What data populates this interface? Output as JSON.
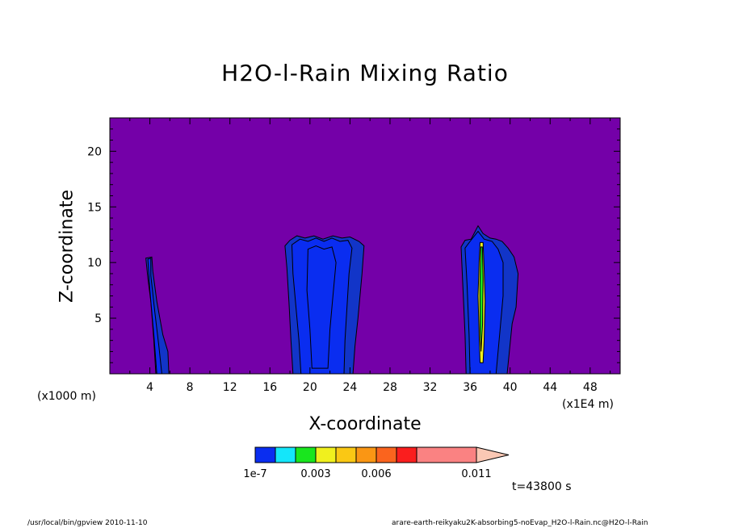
{
  "chart_data": {
    "type": "contour",
    "title": "H2O-l-Rain Mixing Ratio",
    "xlabel": "X-coordinate",
    "ylabel": "Z-coordinate",
    "x_unit_left": "(x1000 m)",
    "x_unit_right": "(x1E4 m)",
    "xlim": [
      0,
      51
    ],
    "ylim": [
      0,
      23
    ],
    "x_ticks": [
      4,
      8,
      12,
      16,
      20,
      24,
      28,
      32,
      36,
      40,
      44,
      48
    ],
    "y_ticks": [
      5,
      10,
      15,
      20
    ],
    "background_color": "#7400A8",
    "colorbar": {
      "colors": [
        "#0A2DF0",
        "#14E6FA",
        "#19E61E",
        "#F0F01E",
        "#FAC814",
        "#FA9614",
        "#FA641E",
        "#FA1E1E",
        "#FA8282"
      ],
      "labels": [
        "1e-7",
        "0.003",
        "0.006",
        "0.011"
      ]
    },
    "features": [
      {
        "name": "cell-left",
        "x_range": [
          3.5,
          5.8
        ],
        "top": 10.5
      },
      {
        "name": "cell-center",
        "x_range": [
          17.5,
          25.5
        ],
        "top": 12.5
      },
      {
        "name": "cell-right",
        "x_range": [
          35.0,
          40.8
        ],
        "top": 13.3
      }
    ],
    "time_label": "t=43800 s"
  },
  "footer": {
    "left": "/usr/local/bin/gpview   2010-11-10",
    "right": "arare-earth-reikyaku2K-absorbing5-noEvap_H2O-l-Rain.nc@H2O-l-Rain"
  }
}
